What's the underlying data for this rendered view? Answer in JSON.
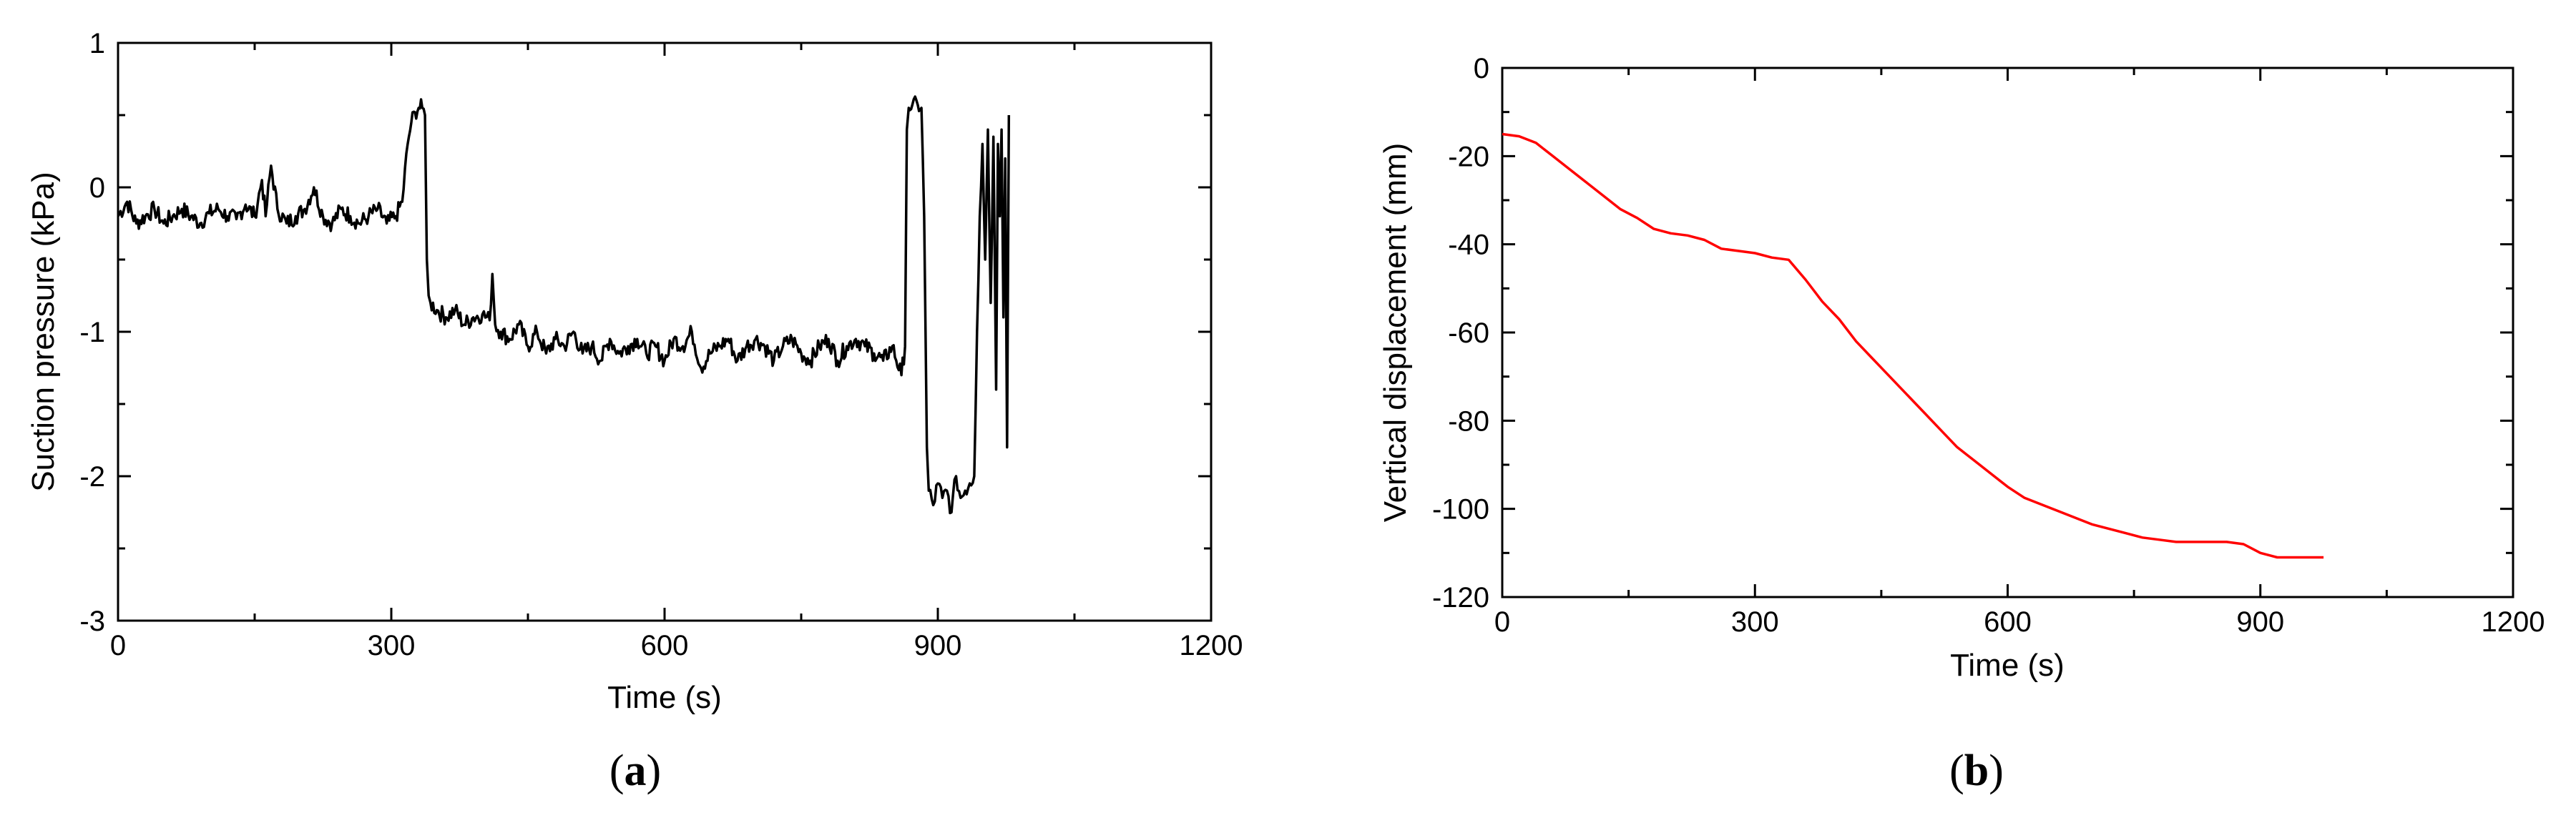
{
  "chart_data": [
    {
      "type": "line",
      "panel_label": "a",
      "xlabel": "Time (s)",
      "ylabel": "Suction pressure  (kPa)",
      "xlim": [
        0,
        1200
      ],
      "ylim": [
        -3,
        1
      ],
      "xticks": [
        0,
        300,
        600,
        900,
        1200
      ],
      "yticks": [
        -3,
        -2,
        -1,
        0,
        1
      ],
      "grid": false,
      "color": "#000000",
      "series": [
        {
          "x": [
            0,
            10,
            20,
            30,
            40,
            50,
            60,
            70,
            80,
            90,
            100,
            110,
            120,
            130,
            140,
            150,
            158,
            162,
            168,
            175,
            185,
            195,
            205,
            215,
            225,
            235,
            245,
            255,
            265,
            275,
            285,
            295,
            305,
            312,
            318,
            322,
            326,
            330,
            334,
            337,
            339,
            341,
            343,
            350,
            360,
            370,
            380,
            390,
            400,
            408,
            411,
            414,
            420,
            430,
            440,
            450,
            460,
            470,
            480,
            490,
            500,
            510,
            520,
            530,
            540,
            550,
            560,
            570,
            580,
            590,
            600,
            610,
            620,
            630,
            640,
            650,
            660,
            670,
            680,
            690,
            700,
            710,
            720,
            730,
            740,
            750,
            760,
            770,
            780,
            790,
            800,
            810,
            820,
            830,
            840,
            850,
            860,
            864,
            866,
            868,
            872,
            878,
            882,
            885,
            888,
            890,
            895,
            900,
            905,
            910,
            915,
            920,
            925,
            930,
            935,
            940,
            943,
            946,
            949,
            952,
            955,
            958,
            961,
            964,
            966,
            968,
            970,
            972,
            974,
            976,
            978
          ],
          "y": [
            -0.2,
            -0.1,
            -0.25,
            -0.2,
            -0.15,
            -0.25,
            -0.2,
            -0.15,
            -0.2,
            -0.25,
            -0.18,
            -0.15,
            -0.2,
            -0.22,
            -0.12,
            -0.2,
            0.05,
            -0.2,
            0.15,
            -0.15,
            -0.25,
            -0.2,
            -0.15,
            0.0,
            -0.2,
            -0.25,
            -0.15,
            -0.2,
            -0.25,
            -0.2,
            -0.15,
            -0.25,
            -0.2,
            -0.1,
            0.3,
            0.45,
            0.52,
            0.55,
            0.55,
            0.5,
            -0.5,
            -0.75,
            -0.8,
            -0.85,
            -0.9,
            -0.85,
            -0.95,
            -0.9,
            -0.88,
            -0.92,
            -0.6,
            -0.95,
            -1.0,
            -1.05,
            -0.95,
            -1.1,
            -1.0,
            -1.15,
            -1.05,
            -1.1,
            -1.0,
            -1.15,
            -1.1,
            -1.2,
            -1.05,
            -1.15,
            -1.1,
            -1.05,
            -1.15,
            -1.1,
            -1.2,
            -1.05,
            -1.1,
            -1.0,
            -1.25,
            -1.15,
            -1.1,
            -1.05,
            -1.2,
            -1.1,
            -1.05,
            -1.1,
            -1.2,
            -1.1,
            -1.05,
            -1.15,
            -1.2,
            -1.1,
            -1.05,
            -1.2,
            -1.1,
            -1.05,
            -1.1,
            -1.15,
            -1.2,
            -1.1,
            -1.3,
            -1.1,
            0.4,
            0.55,
            0.57,
            0.57,
            0.55,
            -0.2,
            -1.8,
            -2.1,
            -2.2,
            -2.05,
            -2.15,
            -2.1,
            -2.25,
            -2.0,
            -2.15,
            -2.1,
            -2.05,
            -2.0,
            -1.0,
            -0.2,
            0.3,
            -0.5,
            0.4,
            -0.8,
            0.35,
            -1.4,
            0.3,
            -0.2,
            0.4,
            -0.9,
            0.2,
            -1.8,
            0.5
          ],
          "noise": 0.06
        }
      ]
    },
    {
      "type": "line",
      "panel_label": "b",
      "xlabel": "Time (s)",
      "ylabel": "Vertical displacement (mm)",
      "xlim": [
        0,
        1200
      ],
      "ylim": [
        -120,
        0
      ],
      "xticks": [
        0,
        300,
        600,
        900,
        1200
      ],
      "yticks": [
        -120,
        -100,
        -80,
        -60,
        -40,
        -20,
        0
      ],
      "grid": false,
      "color": "#ff0000",
      "series": [
        {
          "x": [
            0,
            20,
            40,
            60,
            80,
            100,
            120,
            140,
            160,
            180,
            200,
            220,
            240,
            260,
            280,
            300,
            320,
            340,
            360,
            380,
            400,
            420,
            440,
            460,
            480,
            500,
            520,
            540,
            560,
            580,
            600,
            620,
            640,
            660,
            680,
            700,
            720,
            740,
            760,
            780,
            800,
            820,
            840,
            860,
            880,
            900,
            920,
            940,
            960,
            975
          ],
          "y": [
            -15,
            -15.5,
            -17,
            -20,
            -23,
            -26,
            -29,
            -32,
            -34,
            -36.5,
            -37.5,
            -38,
            -39,
            -41,
            -41.5,
            -42,
            -43,
            -43.5,
            -48,
            -53,
            -57,
            -62,
            -66,
            -70,
            -74,
            -78,
            -82,
            -86,
            -89,
            -92,
            -95,
            -97.5,
            -99,
            -100.5,
            -102,
            -103.5,
            -104.5,
            -105.5,
            -106.5,
            -107,
            -107.5,
            -107.5,
            -107.5,
            -107.5,
            -108,
            -110,
            -111,
            -111,
            -111,
            -111
          ]
        }
      ]
    }
  ]
}
